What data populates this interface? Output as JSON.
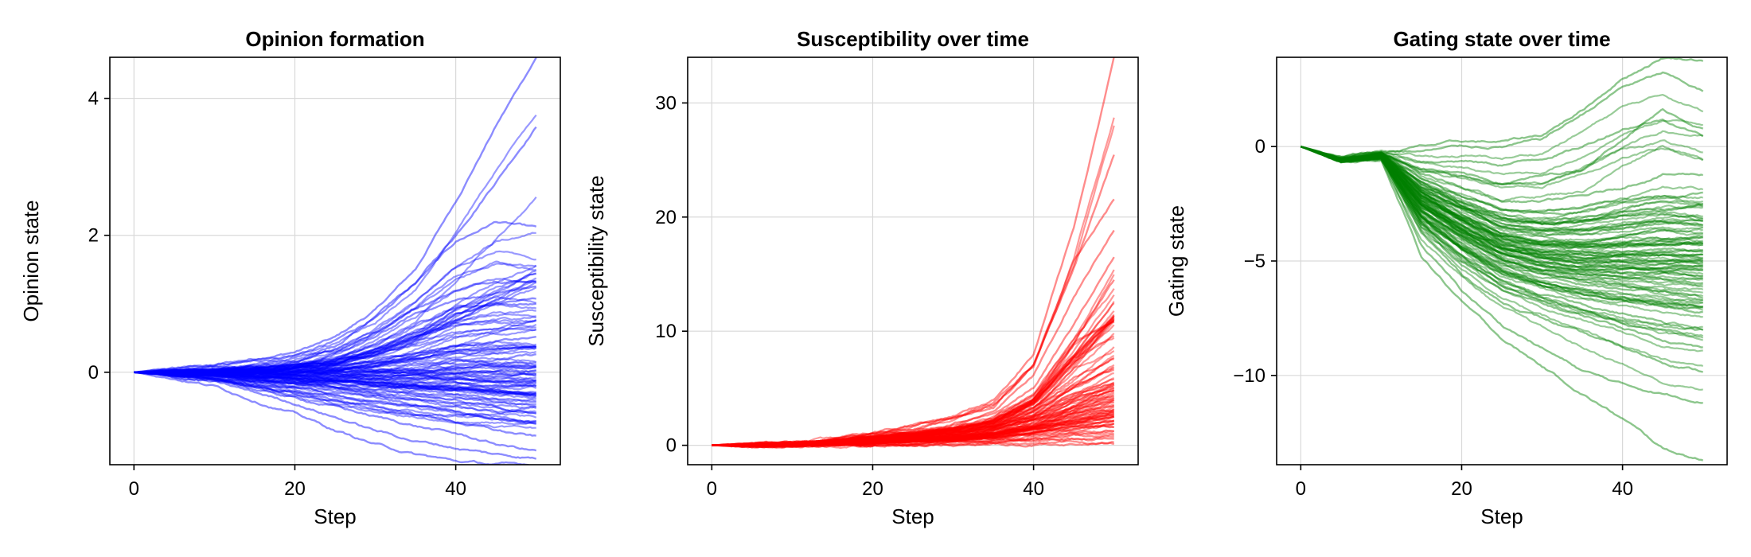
{
  "chart_data": [
    {
      "type": "line",
      "title": "Opinion formation",
      "xlabel": "Step",
      "ylabel": "Opinion state",
      "xlim": [
        -3,
        53
      ],
      "ylim": [
        -1.35,
        4.6
      ],
      "xticks": [
        0,
        20,
        40
      ],
      "yticks": [
        0,
        2,
        4
      ],
      "xtick_labels": [
        "0",
        "20",
        "40"
      ],
      "ytick_labels": [
        "0",
        "2",
        "4"
      ],
      "grid": true,
      "series_color": "#0000ff",
      "series_count": 100,
      "x": [
        0,
        5,
        10,
        15,
        20,
        25,
        30,
        35,
        40,
        45,
        50
      ],
      "series": [
        {
          "values": [
            0,
            0.05,
            0.1,
            0.2,
            0.3,
            0.5,
            0.9,
            1.5,
            2.5,
            3.6,
            4.6
          ]
        },
        {
          "values": [
            0,
            0.05,
            0.08,
            0.15,
            0.25,
            0.45,
            0.8,
            1.3,
            2.0,
            2.8,
            3.6
          ]
        },
        {
          "values": [
            0,
            0.03,
            0.05,
            0.1,
            0.2,
            0.4,
            0.8,
            1.3,
            1.9,
            2.2,
            2.1
          ]
        },
        {
          "values": [
            0,
            0.02,
            0.05,
            0.1,
            0.15,
            0.3,
            0.6,
            0.95,
            1.2,
            1.35,
            1.35
          ]
        },
        {
          "values": [
            0,
            0.02,
            0.04,
            0.08,
            0.12,
            0.25,
            0.5,
            0.85,
            1.05,
            1.15,
            1.25
          ]
        },
        {
          "values": [
            0,
            0.02,
            0.03,
            0.05,
            0.1,
            0.2,
            0.4,
            0.7,
            0.95,
            1.0,
            1.0
          ]
        },
        {
          "values": [
            0,
            0.01,
            0.02,
            0.05,
            0.08,
            0.15,
            0.3,
            0.5,
            0.85,
            1.0,
            1.05
          ]
        },
        {
          "values": [
            0,
            0.01,
            0.02,
            0.04,
            0.06,
            0.1,
            0.2,
            0.3,
            0.4,
            0.45,
            0.5
          ]
        },
        {
          "values": [
            0,
            0.01,
            0.02,
            0.03,
            0.04,
            0.05,
            0.08,
            0.12,
            0.18,
            0.2,
            0.25
          ]
        },
        {
          "values": [
            0,
            0.0,
            0.01,
            0.02,
            0.02,
            0.03,
            0.04,
            0.05,
            0.08,
            0.1,
            0.12
          ]
        },
        {
          "values": [
            0,
            0.0,
            0.0,
            0.0,
            0.0,
            0.0,
            0.0,
            0.0,
            0.0,
            0.0,
            0.0
          ]
        },
        {
          "values": [
            0,
            -0.01,
            -0.02,
            -0.04,
            -0.05,
            -0.07,
            -0.09,
            -0.1,
            -0.12,
            -0.14,
            -0.15
          ]
        },
        {
          "values": [
            0,
            -0.02,
            -0.04,
            -0.08,
            -0.1,
            -0.13,
            -0.16,
            -0.2,
            -0.25,
            -0.28,
            -0.3
          ]
        },
        {
          "values": [
            0,
            -0.02,
            -0.05,
            -0.1,
            -0.14,
            -0.18,
            -0.22,
            -0.28,
            -0.34,
            -0.4,
            -0.45
          ]
        },
        {
          "values": [
            0,
            -0.03,
            -0.06,
            -0.12,
            -0.18,
            -0.24,
            -0.3,
            -0.38,
            -0.45,
            -0.52,
            -0.6
          ]
        },
        {
          "values": [
            0,
            -0.04,
            -0.08,
            -0.15,
            -0.22,
            -0.3,
            -0.38,
            -0.48,
            -0.56,
            -0.66,
            -0.75
          ]
        },
        {
          "values": [
            0,
            -0.05,
            -0.1,
            -0.2,
            -0.3,
            -0.4,
            -0.5,
            -0.6,
            -0.72,
            -0.85,
            -0.95
          ]
        },
        {
          "values": [
            0,
            -0.06,
            -0.12,
            -0.25,
            -0.38,
            -0.5,
            -0.65,
            -0.78,
            -0.9,
            -1.05,
            -1.15
          ]
        },
        {
          "values": [
            0,
            -0.07,
            -0.15,
            -0.3,
            -0.45,
            -0.65,
            -0.85,
            -1.0,
            -1.1,
            -1.2,
            -1.25
          ]
        },
        {
          "values": [
            0,
            -0.08,
            -0.2,
            -0.4,
            -0.6,
            -0.85,
            -1.05,
            -1.2,
            -1.3,
            -1.35,
            -1.35
          ]
        }
      ]
    },
    {
      "type": "line",
      "title": "Susceptibility over time",
      "xlabel": "Step",
      "ylabel": "Susceptibility state",
      "xlim": [
        -3,
        53
      ],
      "ylim": [
        -1.7,
        34
      ],
      "xticks": [
        0,
        20,
        40
      ],
      "yticks": [
        0,
        10,
        20,
        30
      ],
      "xtick_labels": [
        "0",
        "20",
        "40"
      ],
      "ytick_labels": [
        "0",
        "10",
        "20",
        "30"
      ],
      "grid": true,
      "series_color": "#ff0000",
      "series_count": 100,
      "x": [
        0,
        5,
        10,
        15,
        20,
        25,
        30,
        35,
        40,
        45,
        50
      ],
      "series": [
        {
          "values": [
            0,
            0.05,
            0.2,
            0.6,
            1.2,
            1.8,
            2.6,
            4.0,
            8.0,
            19.0,
            34.0
          ]
        },
        {
          "values": [
            0,
            0.05,
            0.2,
            0.55,
            1.1,
            1.7,
            2.4,
            3.6,
            7.0,
            15.5,
            25.5
          ]
        },
        {
          "values": [
            0,
            0.05,
            0.2,
            0.5,
            1.0,
            1.5,
            2.2,
            3.3,
            7.0,
            16.0,
            21.5
          ]
        },
        {
          "values": [
            0,
            0.04,
            0.18,
            0.45,
            0.9,
            1.3,
            2.0,
            3.0,
            6.0,
            13.0,
            19.0
          ]
        },
        {
          "values": [
            0,
            0.04,
            0.15,
            0.4,
            0.8,
            1.2,
            1.8,
            2.7,
            5.0,
            10.5,
            16.5
          ]
        },
        {
          "values": [
            0,
            0.04,
            0.15,
            0.4,
            0.75,
            1.1,
            1.6,
            2.4,
            4.5,
            9.0,
            14.5
          ]
        },
        {
          "values": [
            0,
            0.03,
            0.12,
            0.35,
            0.7,
            1.0,
            1.5,
            2.2,
            4.0,
            9.0,
            11.0
          ]
        },
        {
          "values": [
            0,
            0.03,
            0.12,
            0.3,
            0.6,
            0.9,
            1.3,
            2.0,
            3.5,
            6.0,
            7.5
          ]
        },
        {
          "values": [
            0,
            0.03,
            0.1,
            0.3,
            0.55,
            0.8,
            1.2,
            1.8,
            3.0,
            5.0,
            6.5
          ]
        },
        {
          "values": [
            0,
            0.02,
            0.1,
            0.25,
            0.5,
            0.7,
            1.0,
            1.5,
            2.5,
            4.0,
            5.5
          ]
        },
        {
          "values": [
            0,
            0.02,
            0.08,
            0.2,
            0.45,
            0.65,
            0.9,
            1.3,
            2.2,
            3.5,
            4.3
          ]
        },
        {
          "values": [
            0,
            0.02,
            0.08,
            0.2,
            0.4,
            0.6,
            0.8,
            1.2,
            2.0,
            3.0,
            3.8
          ]
        },
        {
          "values": [
            0,
            0.02,
            0.07,
            0.18,
            0.35,
            0.5,
            0.7,
            1.0,
            1.6,
            2.4,
            3.0
          ]
        },
        {
          "values": [
            0,
            0.01,
            0.06,
            0.15,
            0.3,
            0.45,
            0.6,
            0.85,
            1.3,
            1.9,
            2.4
          ]
        },
        {
          "values": [
            0,
            0.01,
            0.05,
            0.12,
            0.25,
            0.38,
            0.5,
            0.7,
            1.0,
            1.5,
            1.8
          ]
        },
        {
          "values": [
            0,
            0.01,
            0.04,
            0.1,
            0.2,
            0.3,
            0.4,
            0.55,
            0.8,
            1.1,
            1.3
          ]
        },
        {
          "values": [
            0,
            0.01,
            0.03,
            0.08,
            0.15,
            0.22,
            0.3,
            0.4,
            0.55,
            0.75,
            0.9
          ]
        },
        {
          "values": [
            0,
            0.0,
            0.02,
            0.05,
            0.1,
            0.15,
            0.2,
            0.25,
            0.35,
            0.45,
            0.55
          ]
        },
        {
          "values": [
            0,
            0.0,
            0.01,
            0.03,
            0.05,
            0.08,
            0.1,
            0.13,
            0.17,
            0.22,
            0.25
          ]
        },
        {
          "values": [
            0,
            0.0,
            0.0,
            0.01,
            0.02,
            0.03,
            0.04,
            0.05,
            0.06,
            0.07,
            0.08
          ]
        }
      ]
    },
    {
      "type": "line",
      "title": "Gating state over time",
      "xlabel": "Step",
      "ylabel": "Gating state",
      "xlim": [
        -3,
        53
      ],
      "ylim": [
        -13.9,
        3.9
      ],
      "xticks": [
        0,
        20,
        40
      ],
      "yticks": [
        0,
        -5,
        -10
      ],
      "xtick_labels": [
        "0",
        "20",
        "40"
      ],
      "ytick_labels": [
        "0",
        "−5",
        "−10"
      ],
      "grid": true,
      "series_color": "#008000",
      "series_count": 100,
      "x": [
        0,
        5,
        10,
        15,
        20,
        25,
        30,
        35,
        40,
        45,
        50
      ],
      "series": [
        {
          "values": [
            0,
            -0.6,
            -0.3,
            0.0,
            0.2,
            0.2,
            0.5,
            1.6,
            3.0,
            3.9,
            3.8
          ]
        },
        {
          "values": [
            0,
            -0.5,
            -0.2,
            -0.2,
            0.0,
            0.0,
            0.3,
            1.4,
            2.6,
            3.2,
            2.4
          ]
        },
        {
          "values": [
            0,
            -0.5,
            -0.2,
            -0.6,
            -0.6,
            -0.8,
            -0.5,
            0.0,
            0.8,
            1.2,
            0.5
          ]
        },
        {
          "values": [
            0,
            -0.5,
            -0.3,
            -0.9,
            -1.2,
            -1.6,
            -1.3,
            -1.0,
            0.4,
            1.6,
            0.8
          ]
        },
        {
          "values": [
            0,
            -0.6,
            -0.3,
            -1.2,
            -1.8,
            -2.4,
            -2.4,
            -2.2,
            -1.8,
            -1.2,
            -1.2
          ]
        },
        {
          "values": [
            0,
            -0.6,
            -0.3,
            -1.4,
            -2.2,
            -2.8,
            -3.0,
            -2.8,
            -2.4,
            -2.2,
            -2.0
          ]
        },
        {
          "values": [
            0,
            -0.6,
            -0.3,
            -1.6,
            -2.6,
            -3.2,
            -3.4,
            -3.3,
            -3.0,
            -2.8,
            -2.6
          ]
        },
        {
          "values": [
            0,
            -0.6,
            -0.4,
            -1.8,
            -2.8,
            -3.6,
            -3.8,
            -3.8,
            -3.6,
            -3.4,
            -3.4
          ]
        },
        {
          "values": [
            0,
            -0.6,
            -0.4,
            -2.0,
            -3.0,
            -3.8,
            -4.2,
            -4.2,
            -4.2,
            -4.0,
            -4.0
          ]
        },
        {
          "values": [
            0,
            -0.6,
            -0.4,
            -2.2,
            -3.2,
            -4.1,
            -4.5,
            -4.6,
            -4.6,
            -4.5,
            -4.6
          ]
        },
        {
          "values": [
            0,
            -0.6,
            -0.4,
            -2.4,
            -3.4,
            -4.4,
            -4.8,
            -5.0,
            -5.0,
            -5.0,
            -5.0
          ]
        },
        {
          "values": [
            0,
            -0.6,
            -0.4,
            -2.6,
            -3.7,
            -4.7,
            -5.1,
            -5.3,
            -5.4,
            -5.4,
            -5.4
          ]
        },
        {
          "values": [
            0,
            -0.6,
            -0.4,
            -2.8,
            -3.9,
            -4.9,
            -5.4,
            -5.6,
            -5.8,
            -5.8,
            -6.0
          ]
        },
        {
          "values": [
            0,
            -0.6,
            -0.5,
            -3.0,
            -4.2,
            -5.2,
            -5.7,
            -6.0,
            -6.2,
            -6.4,
            -6.6
          ]
        },
        {
          "values": [
            0,
            -0.6,
            -0.5,
            -3.2,
            -4.5,
            -5.5,
            -6.1,
            -6.4,
            -6.7,
            -7.0,
            -7.2
          ]
        },
        {
          "values": [
            0,
            -0.6,
            -0.5,
            -3.4,
            -4.9,
            -5.9,
            -6.5,
            -6.9,
            -7.3,
            -7.7,
            -8.0
          ]
        },
        {
          "values": [
            0,
            -0.6,
            -0.5,
            -3.6,
            -5.2,
            -6.3,
            -6.9,
            -7.4,
            -7.9,
            -8.4,
            -8.8
          ]
        },
        {
          "values": [
            0,
            -0.6,
            -0.5,
            -3.8,
            -5.6,
            -6.8,
            -7.5,
            -8.2,
            -8.8,
            -9.4,
            -9.8
          ]
        },
        {
          "values": [
            0,
            -0.6,
            -0.5,
            -4.3,
            -6.3,
            -7.8,
            -8.8,
            -9.8,
            -10.4,
            -10.8,
            -11.1
          ]
        },
        {
          "values": [
            0,
            -0.6,
            -0.6,
            -4.8,
            -6.8,
            -8.4,
            -9.6,
            -10.8,
            -11.9,
            -13.2,
            -13.7
          ]
        }
      ]
    }
  ]
}
